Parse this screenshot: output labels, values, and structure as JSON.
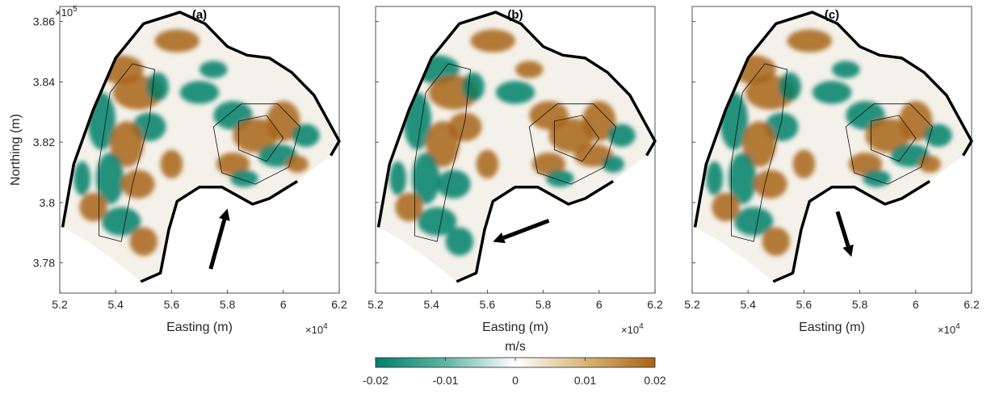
{
  "chart_data": [
    {
      "type": "heatmap",
      "title": "(a)",
      "xlabel": "Easting (m)",
      "ylabel": "Northing (m)",
      "x_ticks": [
        5.2,
        5.4,
        5.6,
        5.8,
        6,
        6.2
      ],
      "y_ticks": [
        3.78,
        3.8,
        3.82,
        3.84,
        3.86
      ],
      "x_multiplier": "×10",
      "x_exponent": "4",
      "y_multiplier": "×10",
      "y_exponent": "5",
      "xlim": [
        52000,
        62000
      ],
      "ylim": [
        377000,
        386500
      ],
      "arrow": {
        "from": [
          57400,
          377800
        ],
        "to": [
          58000,
          379800
        ]
      }
    },
    {
      "type": "heatmap",
      "title": "(b)",
      "xlabel": "Easting (m)",
      "ylabel": "",
      "x_ticks": [
        5.2,
        5.4,
        5.6,
        5.8,
        6,
        6.2
      ],
      "x_multiplier": "×10",
      "x_exponent": "4",
      "xlim": [
        52000,
        62000
      ],
      "ylim": [
        377000,
        386500
      ],
      "arrow": {
        "from": [
          58200,
          379400
        ],
        "to": [
          56200,
          378700
        ]
      }
    },
    {
      "type": "heatmap",
      "title": "(c)",
      "xlabel": "Easting (m)",
      "ylabel": "",
      "x_ticks": [
        5.2,
        5.4,
        5.6,
        5.8,
        6,
        6.2
      ],
      "x_multiplier": "×10",
      "x_exponent": "4",
      "xlim": [
        52000,
        62000
      ],
      "ylim": [
        377000,
        386500
      ],
      "arrow": {
        "from": [
          57200,
          379700
        ],
        "to": [
          57700,
          378200
        ]
      }
    }
  ],
  "colorbar": {
    "label": "m/s",
    "ticks": [
      "-0.02",
      "-0.01",
      "0",
      "0.01",
      "0.02"
    ],
    "range": [
      -0.02,
      0.02
    ],
    "colors": {
      "negative": "#00806a",
      "zero": "#ffffff",
      "positive": "#a86414"
    }
  }
}
